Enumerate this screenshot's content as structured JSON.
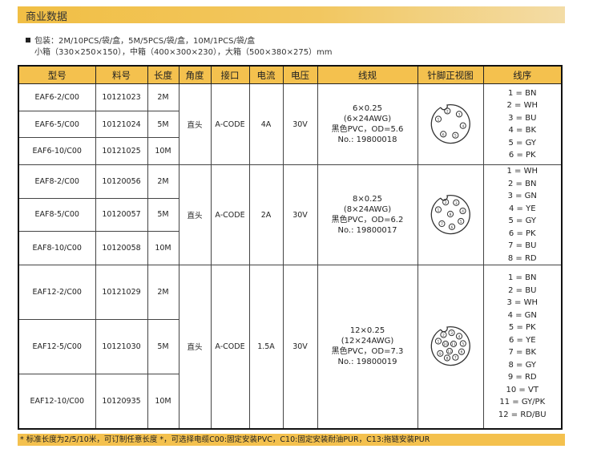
{
  "title": "商业数据",
  "packaging": {
    "line1": "包装：2M/10PCS/袋/盒，5M/5PCS/袋/盒，10M/1PCS/袋/盒",
    "line2": "小箱（330×250×150），中箱（400×300×230），大箱（500×380×275）mm"
  },
  "headers": [
    "型号",
    "料号",
    "长度",
    "角度",
    "接口",
    "电流",
    "电压",
    "线规",
    "针脚正视图",
    "线序"
  ],
  "groups": [
    {
      "rows": [
        [
          "EAF6-2/C00",
          "10121023",
          "2M"
        ],
        [
          "EAF6-5/C00",
          "10121024",
          "5M"
        ],
        [
          "EAF6-10/C00",
          "10121025",
          "10M"
        ]
      ],
      "angle": "直头",
      "interface": "A-CODE",
      "current": "4A",
      "voltage": "30V",
      "spec": [
        "6×0.25",
        "(6×24AWG)",
        "黑色PVC，OD=5.6",
        "No.: 19800018"
      ],
      "pins": 6,
      "sequence": [
        "1 = BN",
        "2 = WH",
        "3 = BU",
        "4 = BK",
        "5 = GY",
        "6 = PK"
      ]
    },
    {
      "rows": [
        [
          "EAF8-2/C00",
          "10120056",
          "2M"
        ],
        [
          "EAF8-5/C00",
          "10120057",
          "5M"
        ],
        [
          "EAF8-10/C00",
          "10120058",
          "10M"
        ]
      ],
      "angle": "直头",
      "interface": "A-CODE",
      "current": "2A",
      "voltage": "30V",
      "spec": [
        "8×0.25",
        "(8×24AWG)",
        "黑色PVC，OD=6.2",
        "No.: 19800017"
      ],
      "pins": 8,
      "sequence": [
        "1 = WH",
        "2 = BN",
        "3 = GN",
        "4 = YE",
        "5 = GY",
        "6 = PK",
        "7 = BU",
        "8 = RD"
      ]
    },
    {
      "rows": [
        [
          "EAF12-2/C00",
          "10121029",
          "2M"
        ],
        [
          "EAF12-5/C00",
          "10121030",
          "5M"
        ],
        [
          "EAF12-10/C00",
          "10120935",
          "10M"
        ]
      ],
      "angle": "直头",
      "interface": "A-CODE",
      "current": "1.5A",
      "voltage": "30V",
      "spec": [
        "12×0.25",
        "(12×24AWG)",
        "黑色PVC，OD=7.3",
        "No.: 19800019"
      ],
      "pins": 12,
      "sequence": [
        "1 = BN",
        "2 = BU",
        "3 = WH",
        "4 = GN",
        "5 = PK",
        "6 = YE",
        "7 = BK",
        "8 = GY",
        "9 = RD",
        "10 = VT",
        "11 = GY/PK",
        "12 = RD/BU"
      ]
    }
  ],
  "footer": "* 标准长度为2/5/10米，可订制任意长度 *，可选择电缆C00:固定安装PVC，C10:固定安装耐油PUR，C13:拖链安装PUR",
  "colors": {
    "accent": "#f4c14e"
  }
}
